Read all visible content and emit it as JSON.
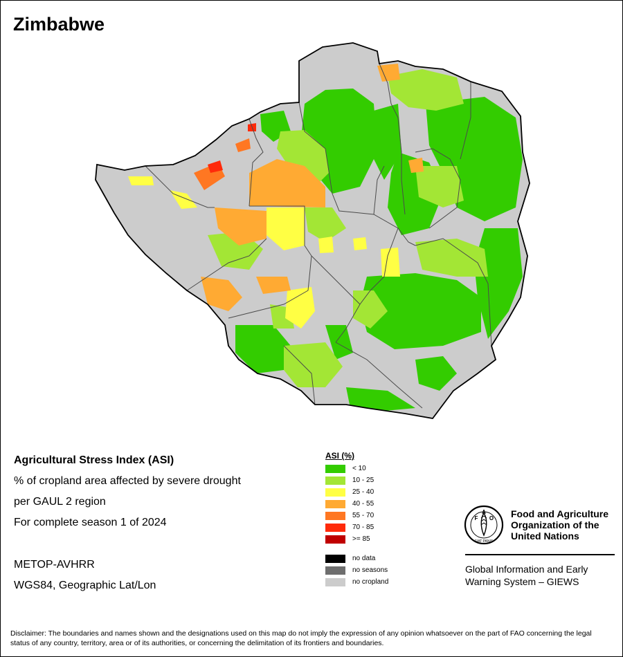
{
  "title": "Zimbabwe",
  "info": {
    "index_name": "Agricultural Stress Index (ASI)",
    "line1": "% of cropland area affected by severe drought",
    "line2": "per GAUL 2 region",
    "line3": "For complete season 1 of 2024",
    "sensor": "METOP-AVHRR",
    "projection": "WGS84, Geographic Lat/Lon"
  },
  "legend": {
    "title": "ASI (%)",
    "classes": [
      {
        "label": "< 10",
        "color": "#33cc00"
      },
      {
        "label": "10 - 25",
        "color": "#a3e635"
      },
      {
        "label": "25 - 40",
        "color": "#ffff44"
      },
      {
        "label": "40 - 55",
        "color": "#ffaa33"
      },
      {
        "label": "55 - 70",
        "color": "#ff7722"
      },
      {
        "label": "70 - 85",
        "color": "#ff2a0a"
      },
      {
        "label": ">= 85",
        "color": "#c00000"
      }
    ],
    "other": [
      {
        "label": "no data",
        "color": "#000000"
      },
      {
        "label": "no seasons",
        "color": "#6e6e6e"
      },
      {
        "label": "no cropland",
        "color": "#cccccc"
      }
    ]
  },
  "organization": {
    "emblem_letters": [
      "F",
      "A",
      "O"
    ],
    "emblem_motto": "FIAT PANIS",
    "name": "Food and Agriculture Organization of the United Nations",
    "program": "Global Information and Early Warning System – GIEWS"
  },
  "disclaimer": "Disclaimer: The boundaries and names shown and the designations used on this map do not imply the expression of any opinion whatsoever on the part of FAO concerning the legal status of any country, territory, area or of its authorities, or concerning the delimitation of its frontiers and boundaries."
}
